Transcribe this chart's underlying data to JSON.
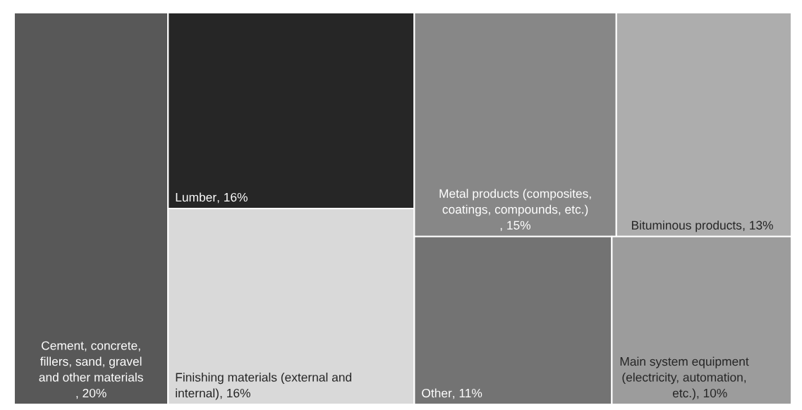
{
  "chart_data": {
    "type": "other",
    "categories": [
      "Cement, concrete, fillers, sand, gravel and other materials",
      "Lumber",
      "Finishing materials (external and internal)",
      "Metal products (composites, coatings, compounds, etc.)",
      "Bituminous products",
      "Other",
      "Main system equipment (electricity, automation, etc.)"
    ],
    "values": [
      20,
      16,
      16,
      15,
      13,
      11,
      10
    ],
    "value_labels": [
      ", 20%",
      ", 16%",
      ", 16%",
      ", 15%",
      ", 13%",
      ", 11%",
      ", 10%"
    ],
    "colors": [
      "#585858",
      "#262626",
      "#d9d9d9",
      "#878787",
      "#adadad",
      "#737373",
      "#9c9c9c"
    ]
  }
}
